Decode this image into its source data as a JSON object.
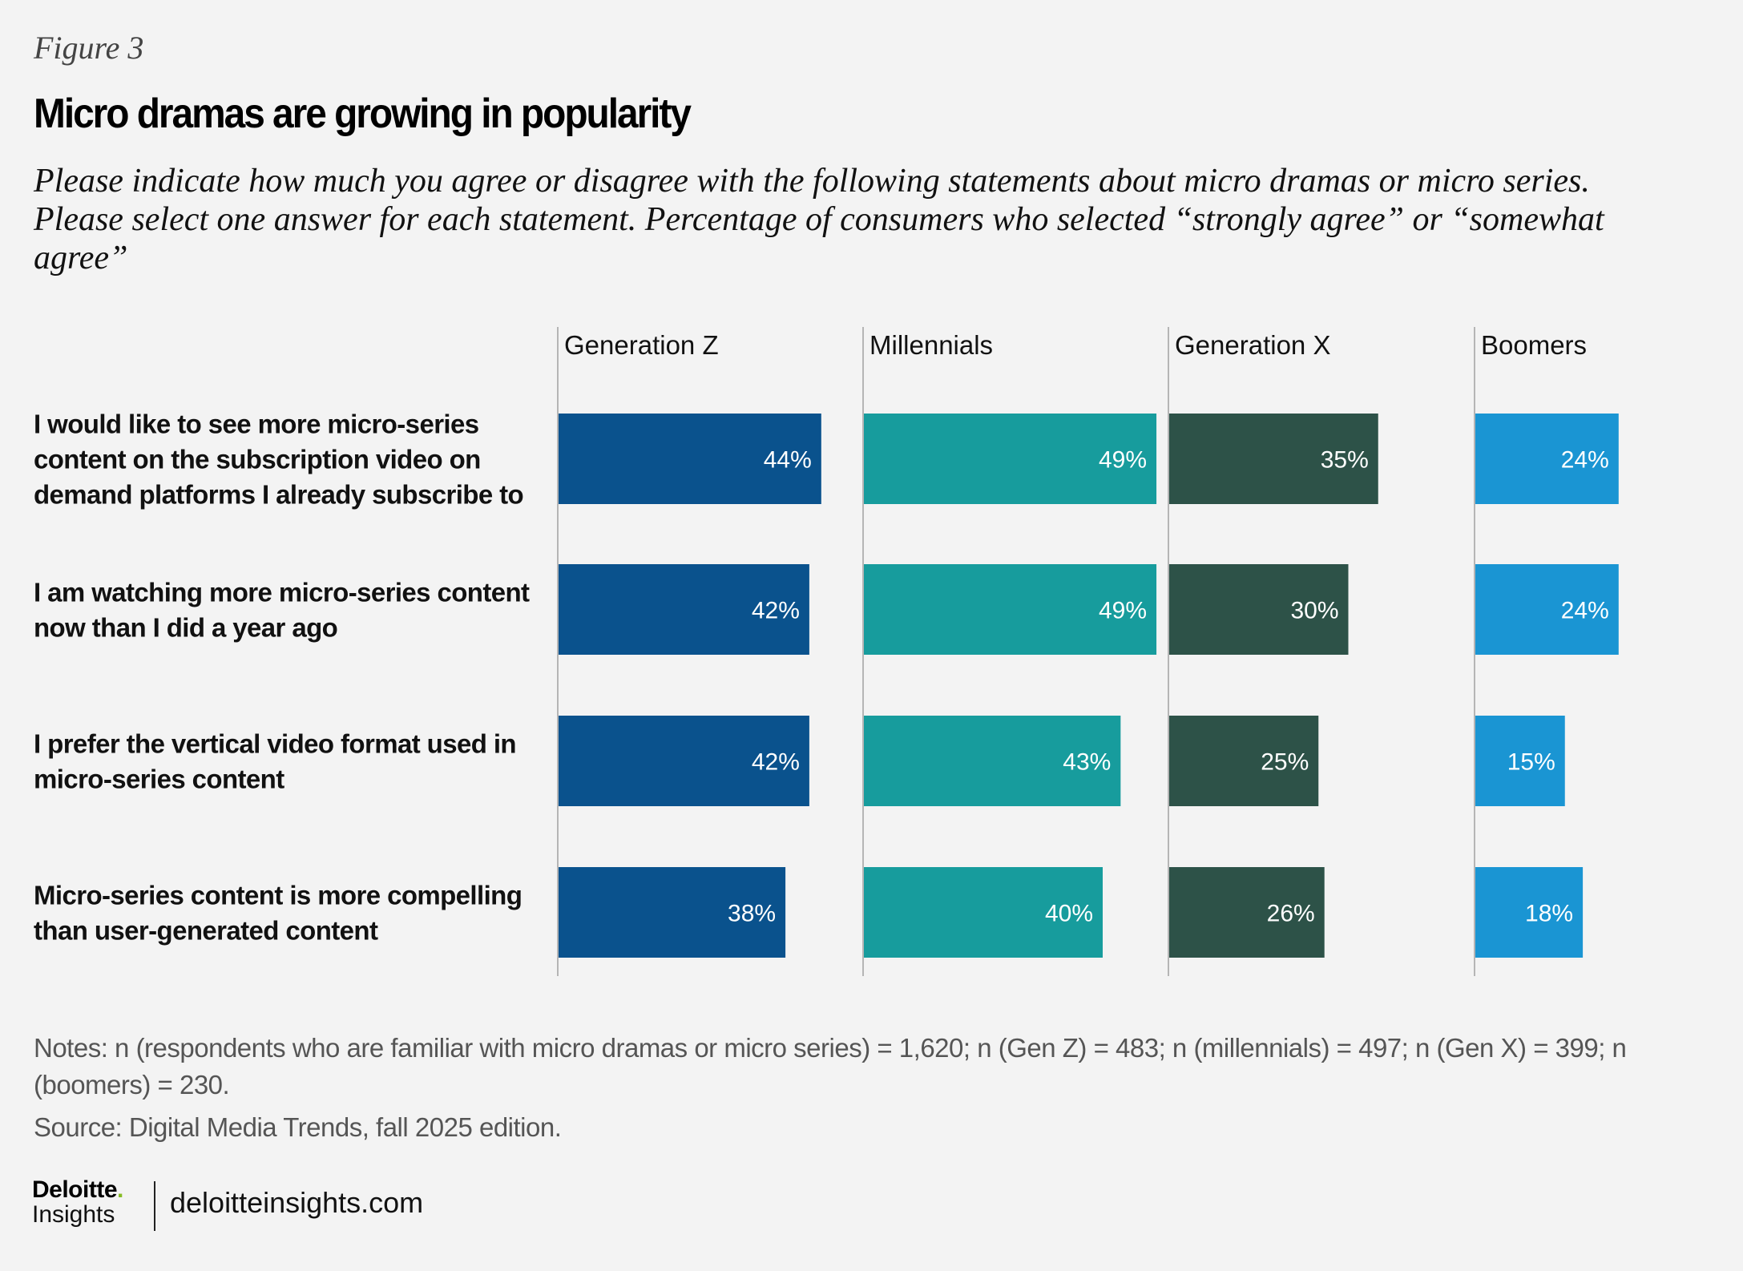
{
  "header": {
    "figure_label": "Figure 3",
    "title": "Micro dramas are growing in popularity",
    "subtitle": "Please indicate how much you agree or disagree with the following statements about micro dramas or micro series. Please select one answer for each statement. Percentage of consumers who selected “strongly agree” or “somewhat agree”"
  },
  "chart_data": {
    "type": "bar",
    "orientation": "horizontal",
    "layout": "small-multiples",
    "title": "Micro dramas are growing in popularity",
    "xlabel": "",
    "ylabel": "",
    "xlim": [
      0,
      50
    ],
    "grid": false,
    "legend": "none (panel headers)",
    "unit": "%",
    "categories": [
      "I would like to see more micro-series content on the subscription video on demand platforms I already subscribe to",
      "I am watching more micro-series content now than I did a year ago",
      "I prefer the vertical video format used in micro-series content",
      "Micro-series content is more compelling than user-generated content"
    ],
    "category_lines": [
      [
        "I would like to see more micro-series",
        "content on the subscription video on",
        "demand platforms I already subscribe to"
      ],
      [
        "I am watching more micro-series content",
        "now than I did a year ago"
      ],
      [
        "I prefer the vertical video format used in",
        "micro-series content"
      ],
      [
        "Micro-series content is more compelling",
        "than user-generated content"
      ]
    ],
    "series": [
      {
        "name": "Generation Z",
        "color": "#0a528d",
        "values": [
          44,
          42,
          42,
          38
        ]
      },
      {
        "name": "Millennials",
        "color": "#179c9d",
        "values": [
          49,
          49,
          43,
          40
        ]
      },
      {
        "name": "Generation X",
        "color": "#2d5248",
        "values": [
          35,
          30,
          25,
          26
        ]
      },
      {
        "name": "Boomers",
        "color": "#1a95d3",
        "values": [
          24,
          24,
          15,
          18
        ]
      }
    ],
    "axis_line_color": "#b5b5b5"
  },
  "footer": {
    "notes": "Notes: n (respondents who are familiar with micro dramas or micro series) = 1,620; n (Gen Z) = 483; n (millennials) = 497; n (Gen X) = 399; n (boomers) = 230.",
    "source": "Source: Digital Media Trends, fall 2025 edition.",
    "logo_brand": "Deloitte",
    "logo_dot": ".",
    "logo_sub": "Insights",
    "website": "deloitteinsights.com",
    "brand_accent": "#86bc25"
  }
}
